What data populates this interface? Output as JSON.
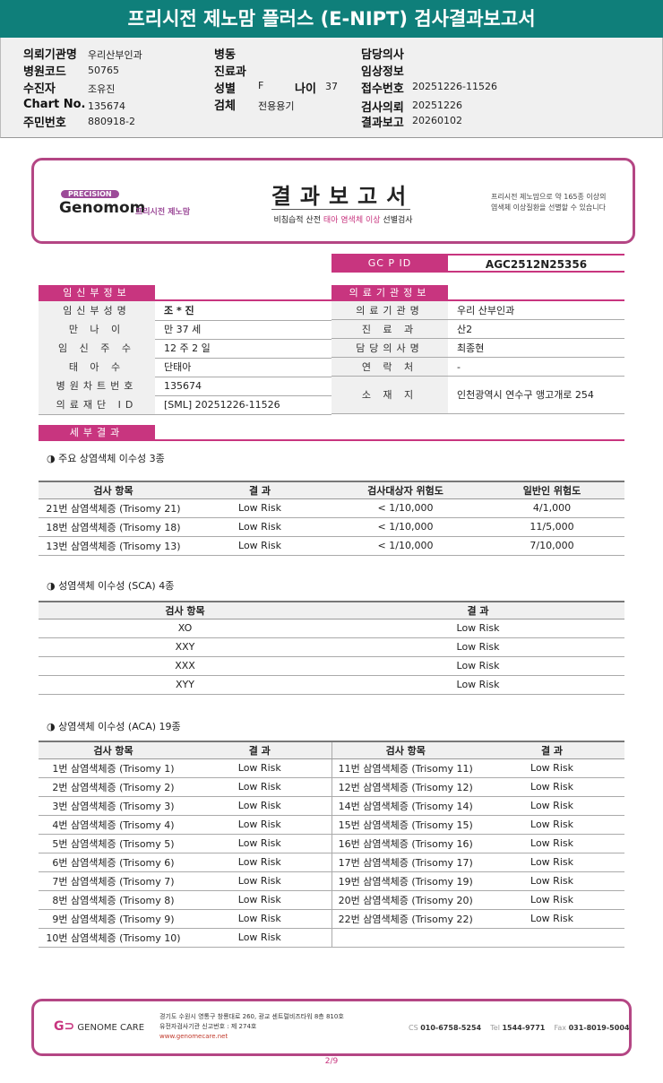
{
  "title": "프리시전 제노맘 플러스 (E-NIPT) 검사결과보고서",
  "info": {
    "col1": [
      {
        "label": "의뢰기관명",
        "value": "우리산부인과"
      },
      {
        "label": "병원코드",
        "value": "50765"
      },
      {
        "label": "수진자",
        "value": "조유진"
      },
      {
        "label": "Chart No.",
        "value": "135674"
      },
      {
        "label": "주민번호",
        "value": "880918-2"
      }
    ],
    "col2": [
      {
        "label": "병동",
        "value": ""
      },
      {
        "label": "진료과",
        "value": ""
      },
      {
        "label": "성별",
        "value": "F"
      },
      {
        "label": "검체",
        "value": "전용용기"
      }
    ],
    "age_label": "나이",
    "age_value": "37",
    "col3": [
      {
        "label": "담당의사",
        "value": ""
      },
      {
        "label": "임상정보",
        "value": ""
      },
      {
        "label": "접수번호",
        "value": "20251226-11526"
      },
      {
        "label": "검사의뢰",
        "value": "20251226"
      },
      {
        "label": "결과보고",
        "value": "20260102"
      }
    ]
  },
  "report_header": {
    "badge": "PRECISION",
    "brand": "Genomom",
    "brand_ko": "프리시전 제노맘",
    "title": "결과보고서",
    "subtitle_pre": "비침습적 산전 ",
    "subtitle_hl": "태아 염색체 이상",
    "subtitle_post": " 선별검사",
    "note_line1": "프리시전 제노맘으로 약 165종 이상의",
    "note_line2": "염색체 이상질환을 선별할 수 있습니다"
  },
  "gcpid": {
    "label": "GC P ID",
    "value": "AGC2512N25356"
  },
  "patient": {
    "section": "임신부정보",
    "rows": [
      {
        "label": "임신부성명",
        "value": "조 * 진"
      },
      {
        "label": "만 나 이",
        "value": "만 37 세"
      },
      {
        "label": "임 신 주 수",
        "value": "12 주 2 일"
      },
      {
        "label": "태 아 수",
        "value": "단태아"
      },
      {
        "label": "병원차트번호",
        "value": "135674"
      },
      {
        "label": "의료재단 ID",
        "value": "[SML] 20251226-11526"
      }
    ]
  },
  "clinic": {
    "section": "의료기관정보",
    "rows": [
      {
        "label": "의료기관명",
        "value": "우리 산부인과"
      },
      {
        "label": "진 료 과",
        "value": "산2"
      },
      {
        "label": "담당의사명",
        "value": "최종현"
      },
      {
        "label": "연 락 처",
        "value": "-"
      },
      {
        "label": "소 재 지",
        "value": "인천광역시 연수구 앵고개로 254"
      }
    ]
  },
  "detail_section": "세부결과",
  "major": {
    "heading": "◑ 주요 상염색체 이수성 3종",
    "headers": [
      "검사 항목",
      "결 과",
      "검사대상자 위험도",
      "일반인 위험도"
    ],
    "rows": [
      [
        "21번 삼염색체증 (Trisomy 21)",
        "Low Risk",
        "< 1/10,000",
        "4/1,000"
      ],
      [
        "18번 삼염색체증 (Trisomy 18)",
        "Low Risk",
        "< 1/10,000",
        "11/5,000"
      ],
      [
        "13번 삼염색체증 (Trisomy 13)",
        "Low Risk",
        "< 1/10,000",
        "7/10,000"
      ]
    ]
  },
  "sca": {
    "heading": "◑ 성염색체 이수성 (SCA) 4종",
    "headers": [
      "검사 항목",
      "결 과"
    ],
    "rows": [
      [
        "XO",
        "Low Risk"
      ],
      [
        "XXY",
        "Low Risk"
      ],
      [
        "XXX",
        "Low Risk"
      ],
      [
        "XYY",
        "Low Risk"
      ]
    ]
  },
  "aca": {
    "heading": "◑ 상염색체 이수성 (ACA) 19종",
    "headers": [
      "검사 항목",
      "결 과",
      "검사 항목",
      "결 과"
    ],
    "rows": [
      [
        "1번 삼염색체증 (Trisomy 1)",
        "Low Risk",
        "11번 삼염색체증 (Trisomy 11)",
        "Low Risk"
      ],
      [
        "2번 삼염색체증 (Trisomy 2)",
        "Low Risk",
        "12번 삼염색체증 (Trisomy 12)",
        "Low Risk"
      ],
      [
        "3번 삼염색체증 (Trisomy 3)",
        "Low Risk",
        "14번 삼염색체증 (Trisomy 14)",
        "Low Risk"
      ],
      [
        "4번 삼염색체증 (Trisomy 4)",
        "Low Risk",
        "15번 삼염색체증 (Trisomy 15)",
        "Low Risk"
      ],
      [
        "5번 삼염색체증 (Trisomy 5)",
        "Low Risk",
        "16번 삼염색체증 (Trisomy 16)",
        "Low Risk"
      ],
      [
        "6번 삼염색체증 (Trisomy 6)",
        "Low Risk",
        "17번 삼염색체증 (Trisomy 17)",
        "Low Risk"
      ],
      [
        "7번 삼염색체증 (Trisomy 7)",
        "Low Risk",
        "19번 삼염색체증 (Trisomy 19)",
        "Low Risk"
      ],
      [
        "8번 삼염색체증 (Trisomy 8)",
        "Low Risk",
        "20번 삼염색체증 (Trisomy 20)",
        "Low Risk"
      ],
      [
        "9번 삼염색체증 (Trisomy 9)",
        "Low Risk",
        "22번 삼염색체증 (Trisomy 22)",
        "Low Risk"
      ],
      [
        "10번 삼염색체증 (Trisomy 10)",
        "Low Risk",
        "",
        ""
      ]
    ]
  },
  "footer": {
    "brand": "GENOME CARE",
    "address": "경기도 수원시 영통구 창룡대로 260, 광교 센트럴비즈타워 8층 810호",
    "license": "유전자검사기관 신고번호 : 제 274호",
    "website": "www.genomecare.net",
    "cs_label": "CS",
    "cs": "010-6758-5254",
    "tel_label": "Tel",
    "tel": "1544-9771",
    "fax_label": "Fax",
    "fax": "031-8019-5004",
    "page": "2/9"
  },
  "colors": {
    "header": "#0f7f7a",
    "accent": "#c8357f"
  }
}
